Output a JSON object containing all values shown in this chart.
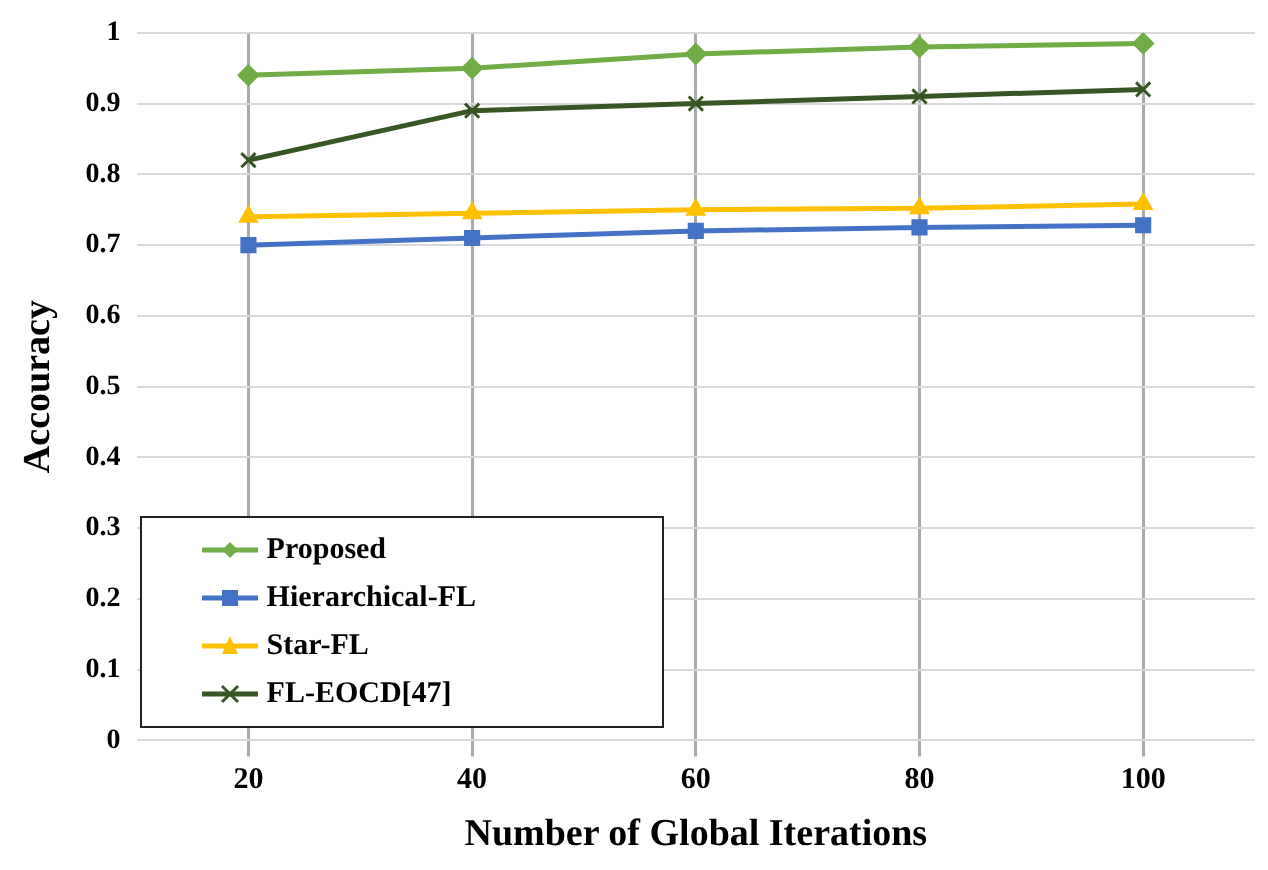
{
  "chart_data": {
    "type": "line",
    "xlabel": "Number of Global Iterations",
    "ylabel": "Accouracy",
    "categories": [
      "20",
      "40",
      "60",
      "80",
      "100"
    ],
    "series": [
      {
        "name": "Proposed",
        "color": "#70ad47",
        "marker": "diamond",
        "values": [
          0.94,
          0.95,
          0.97,
          0.98,
          0.985
        ]
      },
      {
        "name": "Hierarchical-FL",
        "color": "#4472c4",
        "marker": "square",
        "values": [
          0.7,
          0.71,
          0.72,
          0.725,
          0.728
        ]
      },
      {
        "name": "Star-FL",
        "color": "#ffc000",
        "marker": "triangle",
        "values": [
          0.74,
          0.745,
          0.75,
          0.752,
          0.758
        ]
      },
      {
        "name": "FL-EOCD[47]",
        "color": "#375623",
        "marker": "cross",
        "values": [
          0.82,
          0.89,
          0.9,
          0.91,
          0.92
        ]
      }
    ],
    "ylim": [
      0,
      1
    ],
    "yticks": [
      0,
      0.1,
      0.2,
      0.3,
      0.4,
      0.5,
      0.6,
      0.7,
      0.8,
      0.9,
      1
    ],
    "grid": true,
    "legend": "bottom left",
    "line_style": "solid"
  }
}
